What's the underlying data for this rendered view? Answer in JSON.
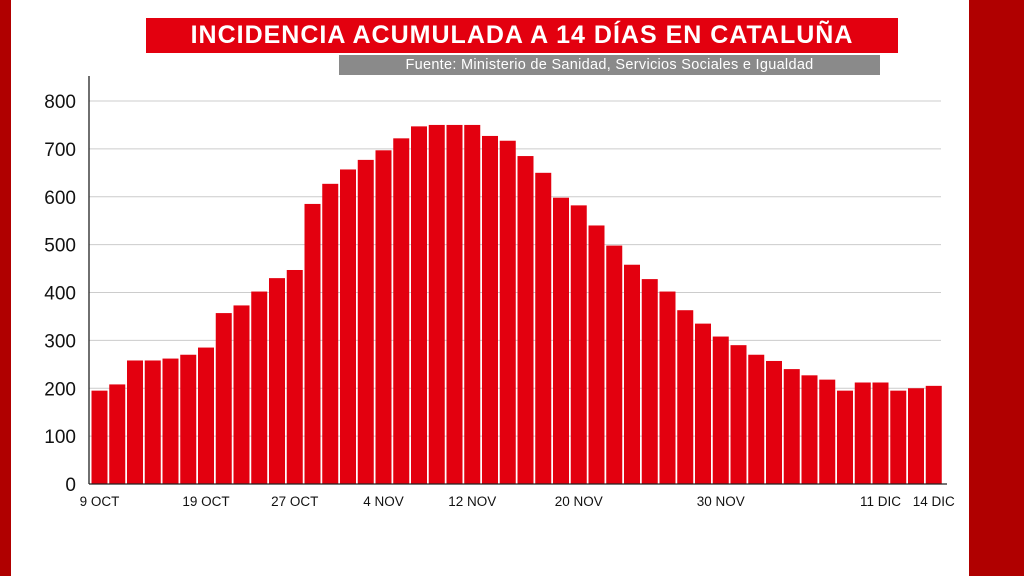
{
  "colors": {
    "frame": "#b00000",
    "bar": "#e3000f",
    "title_bg": "#e3000f",
    "source_bg": "#8a8a8a",
    "grid": "#cccccc"
  },
  "header": {
    "title": "INCIDENCIA ACUMULADA A 14 DÍAS EN CATALUÑA",
    "source": "Fuente: Ministerio de Sanidad, Servicios Sociales e Igualdad"
  },
  "chart_data": {
    "type": "bar",
    "title": "INCIDENCIA ACUMULADA A 14 DÍAS EN CATALUÑA",
    "xlabel": "",
    "ylabel": "",
    "ylim": [
      0,
      800
    ],
    "yticks": [
      0,
      100,
      200,
      300,
      400,
      500,
      600,
      700,
      800
    ],
    "grid": true,
    "legend": "none",
    "tick_labels": [
      {
        "label": "9 OCT",
        "index": 0
      },
      {
        "label": "19 OCT",
        "index": 6
      },
      {
        "label": "27 OCT",
        "index": 11
      },
      {
        "label": "4 NOV",
        "index": 16
      },
      {
        "label": "12 NOV",
        "index": 21
      },
      {
        "label": "20 NOV",
        "index": 27
      },
      {
        "label": "30 NOV",
        "index": 35
      },
      {
        "label": "11 DIC",
        "index": 44
      },
      {
        "label": "14 DIC",
        "index": 47
      }
    ],
    "values": [
      195,
      208,
      258,
      258,
      262,
      270,
      285,
      357,
      373,
      402,
      430,
      447,
      585,
      627,
      657,
      677,
      697,
      722,
      747,
      750,
      750,
      750,
      727,
      717,
      685,
      650,
      598,
      582,
      540,
      498,
      458,
      428,
      402,
      363,
      335,
      308,
      290,
      270,
      257,
      240,
      227,
      218,
      195,
      212,
      212,
      195,
      200,
      205
    ]
  }
}
